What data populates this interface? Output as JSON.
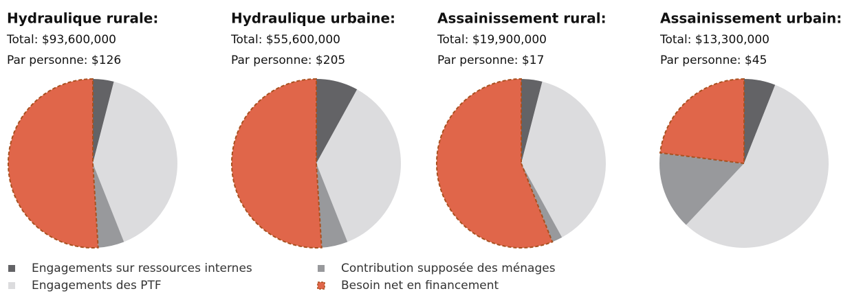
{
  "chart_data": [
    {
      "type": "pie",
      "title": "Hydraulique rurale:",
      "total": "Total: $93,600,000",
      "per_person": "Par personne: $126",
      "values": [
        4,
        40,
        5,
        51
      ]
    },
    {
      "type": "pie",
      "title": "Hydraulique urbaine:",
      "total": "Total: $55,600,000",
      "per_person": "Par personne: $205",
      "values": [
        8,
        36,
        5,
        51
      ]
    },
    {
      "type": "pie",
      "title": "Assainissement rural:",
      "total": "Total: $19,900,000",
      "per_person": "Par personne: $17",
      "values": [
        4,
        38,
        2,
        56
      ]
    },
    {
      "type": "pie",
      "title": "Assainissement urbain:",
      "total": "Total: $13,300,000",
      "per_person": "Par personne: $45",
      "values": [
        6,
        56,
        15,
        23
      ]
    }
  ],
  "legend": {
    "categories": [
      "Engagements sur ressources internes",
      "Engagements des PTF",
      "Contribution supposée des ménages",
      "Besoin net en financement"
    ],
    "colors": [
      "#636366",
      "#dcdcde",
      "#98999c",
      "#e0664a"
    ]
  }
}
